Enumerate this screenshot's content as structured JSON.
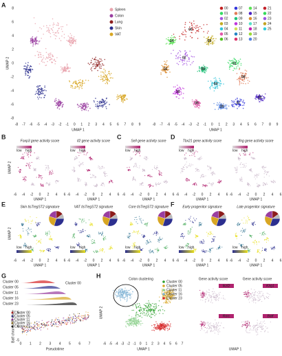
{
  "panel_labels": [
    "A",
    "B",
    "C",
    "D",
    "E",
    "F",
    "G",
    "H"
  ],
  "a": {
    "legend": [
      "Spleen",
      "Colon",
      "Lung",
      "Skin",
      "VAT"
    ],
    "clusters": [
      "00",
      "01",
      "02",
      "03",
      "04",
      "05",
      "06",
      "07",
      "08",
      "09",
      "10",
      "11",
      "12",
      "13",
      "14",
      "15",
      "16",
      "17",
      "18",
      "19",
      "20",
      "21",
      "22",
      "23",
      "24",
      "25"
    ],
    "x_label": "UMAP 1",
    "y_label": "UMAP 2",
    "x_ticks": [
      -8,
      -7,
      -6,
      -5,
      -4,
      -3,
      -2,
      -1,
      0,
      1,
      2,
      3,
      4,
      5,
      6,
      7,
      8,
      9
    ],
    "y_ticks": [
      -8,
      -6,
      -4,
      -2,
      0,
      2,
      4,
      6,
      8
    ]
  },
  "bd": {
    "titles": [
      "Foxp3 gene activity score",
      "Il2 gene activity score",
      "Sell gene activity score",
      "Tbx21 gene activity score",
      "Ifng gene activity score"
    ],
    "low": "low",
    "high": "high",
    "x_label": "UMAP 1",
    "y_label": "UMAP 2",
    "x_ticks": [
      -6,
      -4,
      -2,
      0,
      2,
      4,
      6
    ]
  },
  "ef": {
    "titles": [
      "Skin tisTregST2 signature",
      "VAT tisTregST2 signature",
      "Core tisTregST2 signature",
      "Early progenitor signature",
      "Late progenitor signature"
    ],
    "low": "low",
    "high": "high",
    "x_label": "UMAP 1",
    "y_label": "UMAP 2",
    "x_ticks": [
      -6,
      -4,
      -2,
      0,
      2,
      4,
      6
    ]
  },
  "g": {
    "clusters": [
      "Cluster 00",
      "Cluster 05",
      "Cluster 11",
      "Cluster 16",
      "Cluster 23"
    ],
    "x_label": "Pseudotime",
    "y_label": "Batf chromVAR score",
    "x_ticks": [
      0,
      1,
      2,
      3,
      4,
      5,
      6,
      7
    ],
    "y_ticks": [
      -5,
      0,
      5
    ]
  },
  "h": {
    "title": "Colon clustering",
    "legend": [
      "Cluster 00",
      "Cluster 05",
      "Cluster 11",
      "Cluster 16",
      "Cluster 23"
    ],
    "score_title": "Gene activity score",
    "genes": [
      "Ikzf2",
      "Klrg1",
      "Rorc",
      "Batf"
    ],
    "x_label": "UMAP 1",
    "y_label": "UMAP 2",
    "x_ticks": [
      -6,
      -5,
      -4,
      -3,
      -2,
      -1,
      0,
      1,
      2,
      3,
      4,
      5,
      6,
      7
    ]
  }
}
